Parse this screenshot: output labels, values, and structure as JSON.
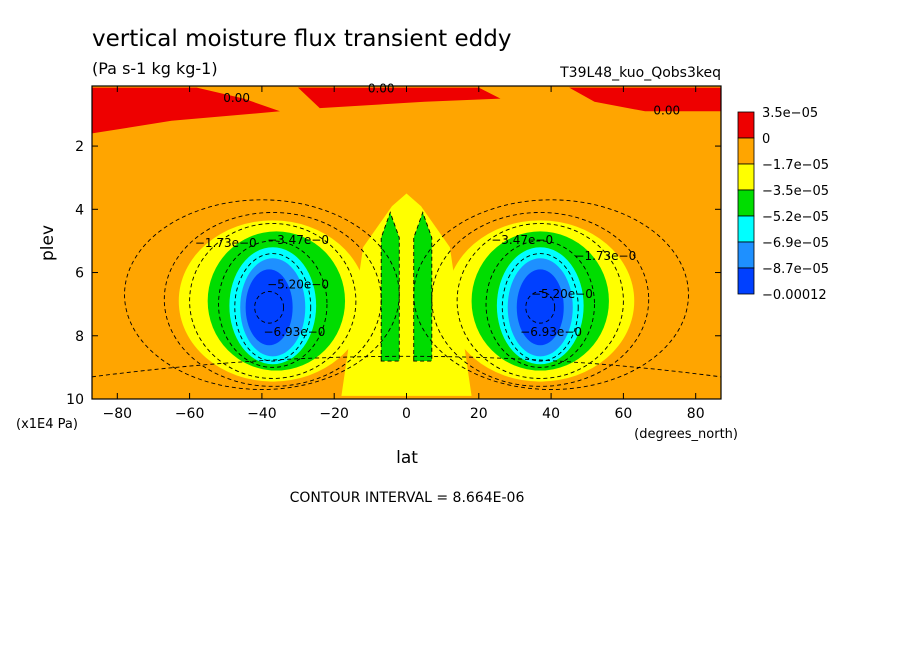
{
  "chart_data": {
    "type": "contour",
    "title": "vertical moisture flux transient eddy",
    "subtitle": "(Pa s-1 kg kg-1)",
    "run_label": "T39L48_kuo_Qobs3keq",
    "xlabel": "lat",
    "xunits": "(degrees_north)",
    "ylabel": "plev",
    "yunits": "(x1E4 Pa)",
    "xlim": [
      -87,
      87
    ],
    "ylim": [
      10,
      0.1
    ],
    "x_ticks": [
      -80,
      -60,
      -40,
      -20,
      0,
      20,
      40,
      60,
      80
    ],
    "x_tick_labels": [
      "−80",
      "−60",
      "−40",
      "−20",
      "0",
      "20",
      "40",
      "60",
      "80"
    ],
    "y_ticks": [
      2,
      4,
      6,
      8,
      10
    ],
    "y_tick_labels": [
      "2",
      "4",
      "6",
      "8",
      "10"
    ],
    "contour_interval": "CONTOUR INTERVAL = 8.664E-06",
    "colorbar": {
      "labels": [
        "3.5e−05",
        "0",
        "−1.7e−05",
        "−3.5e−05",
        "−5.2e−05",
        "−6.9e−05",
        "−8.7e−05",
        "−0.00012"
      ],
      "colors": [
        "#ee0000",
        "#ffa500",
        "#ffff00",
        "#00dd00",
        "#00ffff",
        "#1e90ff",
        "#0040ff"
      ]
    },
    "contour_labels": [
      {
        "text": "0.00",
        "lat": -47,
        "plev": 0.6
      },
      {
        "text": "0.00",
        "lat": -7,
        "plev": 0.3
      },
      {
        "text": "0.00",
        "lat": 72,
        "plev": 1.0
      },
      {
        "text": "−1.73e−0",
        "lat": -50,
        "plev": 5.2
      },
      {
        "text": "−3.47e−0",
        "lat": -30,
        "plev": 5.1
      },
      {
        "text": "−5.20e−0",
        "lat": -30,
        "plev": 6.5
      },
      {
        "text": "−6.93e−0",
        "lat": -31,
        "plev": 8.0
      },
      {
        "text": "−3.47e−0",
        "lat": 32,
        "plev": 5.1
      },
      {
        "text": "−1.73e−0",
        "lat": 55,
        "plev": 5.6
      },
      {
        "text": "−5.20e−0",
        "lat": 43,
        "plev": 6.8
      },
      {
        "text": "−6.93e−0",
        "lat": 40,
        "plev": 8.0
      }
    ]
  }
}
